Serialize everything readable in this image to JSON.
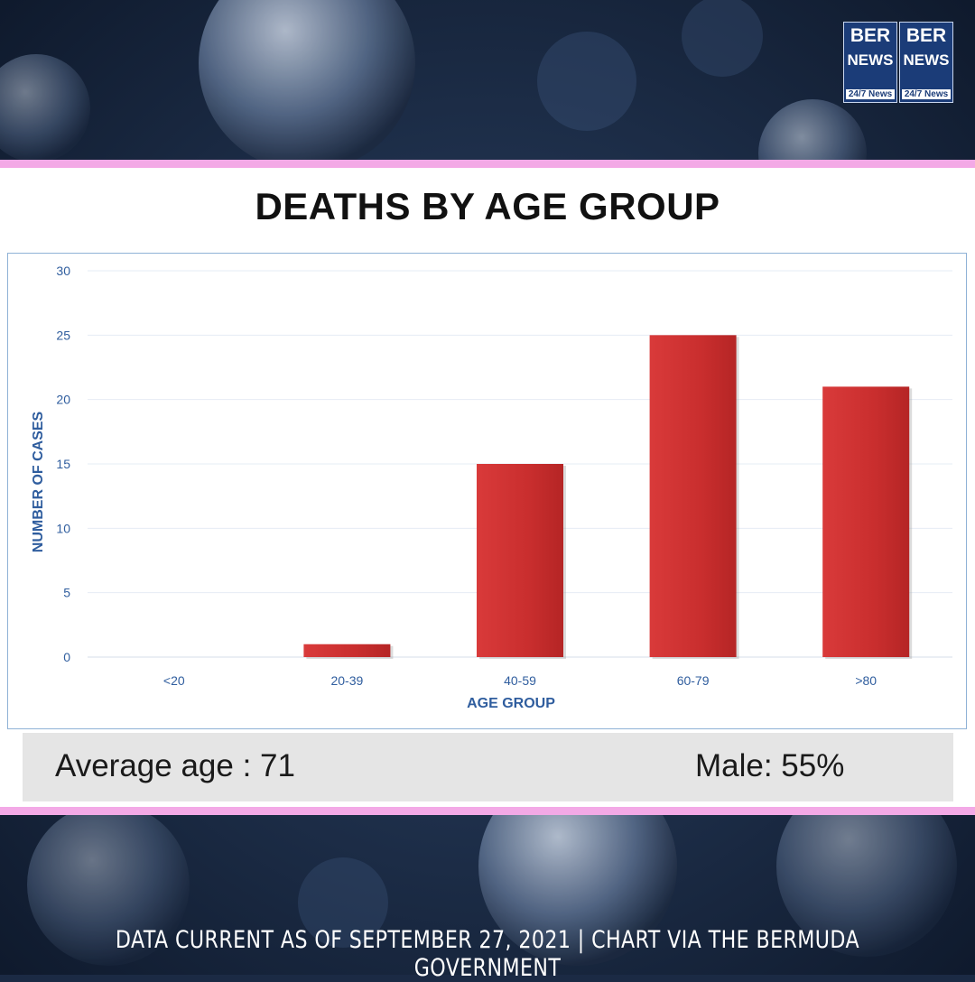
{
  "title": "DEATHS BY AGE GROUP",
  "stats": {
    "average_age": "Average age : 71",
    "male": "Male: 55%"
  },
  "footer": "DATA CURRENT AS OF SEPTEMBER 27, 2021 | CHART VIA THE BERMUDA GOVERNMENT",
  "logo": {
    "ber": "BER",
    "news": "NEWS",
    "tag": "24/7 News"
  },
  "colors": {
    "bar": "#cc2e2e",
    "band": "#f3a9e6",
    "axis_text": "#2f5d9e",
    "background": "#1b2a44"
  },
  "chart_data": {
    "type": "bar",
    "title": "DEATHS BY AGE GROUP",
    "categories": [
      "<20",
      "20-39",
      "40-59",
      "60-79",
      ">80"
    ],
    "values": [
      0,
      1,
      15,
      25,
      21
    ],
    "xlabel": "AGE GROUP",
    "ylabel": "NUMBER OF CASES",
    "ylim": [
      0,
      30
    ],
    "yticks": [
      0,
      5,
      10,
      15,
      20,
      25,
      30
    ],
    "grid": true,
    "legend": "none"
  }
}
